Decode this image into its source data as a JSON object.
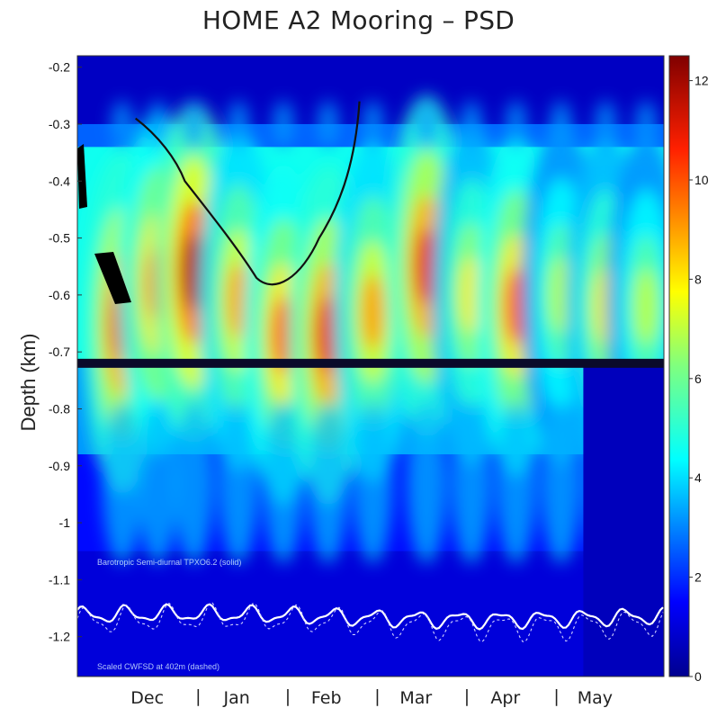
{
  "chart_data": {
    "type": "heatmap",
    "title": "HOME A2 Mooring – PSD",
    "ylabel": "Depth (km)",
    "xlabel": "",
    "ylim": [
      -1.27,
      -0.18
    ],
    "yticks": [
      "-0.2",
      "-0.3",
      "-0.4",
      "-0.5",
      "-0.6",
      "-0.7",
      "-0.8",
      "-0.9",
      "-1",
      "-1.1",
      "-1.2"
    ],
    "ytick_values": [
      -0.2,
      -0.3,
      -0.4,
      -0.5,
      -0.6,
      -0.7,
      -0.8,
      -0.9,
      -1.0,
      -1.1,
      -1.2
    ],
    "months": [
      "Dec",
      "Jan",
      "Feb",
      "Mar",
      "Apr",
      "May"
    ],
    "colorbar": {
      "range": [
        0,
        12.5
      ],
      "ticks": [
        "0",
        "2",
        "4",
        "6",
        "8",
        "10",
        "12"
      ],
      "tick_values": [
        0,
        2,
        4,
        6,
        8,
        10,
        12
      ],
      "colormap": "jet"
    },
    "annotations": {
      "solid_label": "Barotropic Semi-diurnal TPXO6.2 (solid)",
      "dashed_label": "Scaled CWFSD at 402m (dashed)"
    },
    "spring_tide_peaks": [
      {
        "month_pos": 0.5,
        "peak_depth_km": -0.65,
        "peak_psd": 11
      },
      {
        "month_pos": 0.9,
        "peak_depth_km": -0.58,
        "peak_psd": 10
      },
      {
        "month_pos": 1.3,
        "peak_depth_km": -0.56,
        "peak_psd": 12
      },
      {
        "month_pos": 1.8,
        "peak_depth_km": -0.61,
        "peak_psd": 9
      },
      {
        "month_pos": 2.3,
        "peak_depth_km": -0.67,
        "peak_psd": 10
      },
      {
        "month_pos": 2.8,
        "peak_depth_km": -0.67,
        "peak_psd": 11
      },
      {
        "month_pos": 3.3,
        "peak_depth_km": -0.63,
        "peak_psd": 9
      },
      {
        "month_pos": 3.9,
        "peak_depth_km": -0.55,
        "peak_psd": 11
      },
      {
        "month_pos": 4.4,
        "peak_depth_km": -0.6,
        "peak_psd": 8
      },
      {
        "month_pos": 4.9,
        "peak_depth_km": -0.62,
        "peak_psd": 10
      },
      {
        "month_pos": 5.4,
        "peak_depth_km": -0.6,
        "peak_psd": 7
      },
      {
        "month_pos": 5.9,
        "peak_depth_km": -0.62,
        "peak_psd": 8
      },
      {
        "month_pos": 6.35,
        "peak_depth_km": -0.62,
        "peak_psd": 7
      }
    ],
    "masked_band_depth_km": -0.72,
    "colors": {
      "low": "#00008f",
      "high": "#800000"
    }
  }
}
